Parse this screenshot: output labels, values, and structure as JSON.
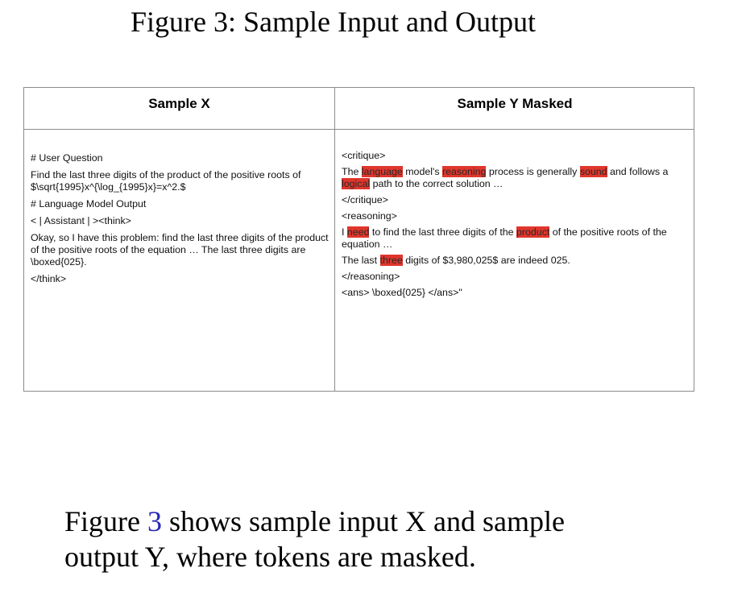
{
  "figure_title": "Figure 3: Sample Input and Output",
  "table": {
    "header_left": "Sample X",
    "header_right": "Sample Y Masked",
    "sample_x": {
      "heading_question": "# User Question",
      "question_line1": "Find the last three digits of the product of the positive roots of",
      "question_line2": "$\\sqrt{1995}x^{\\log_{1995}x}=x^2.$",
      "heading_output": "# Language Model Output",
      "assistant_tag": "< | Assistant | ><think>",
      "output_text": "Okay, so I have this problem: find the last three digits of the product of the positive roots of the equation … The last three digits are \\boxed{025}.",
      "think_close": "</think>"
    },
    "sample_y": {
      "critique_open": "<critique>",
      "critique_line": [
        {
          "text": "The ",
          "masked": false
        },
        {
          "text": "language",
          "masked": true
        },
        {
          "text": " model's ",
          "masked": false
        },
        {
          "text": "reasoning",
          "masked": true
        },
        {
          "text": " process is generally ",
          "masked": false
        },
        {
          "text": "sound",
          "masked": true
        },
        {
          "text": " and follows a ",
          "masked": false
        },
        {
          "text": "logical",
          "masked": true
        },
        {
          "text": " path to the correct solution …",
          "masked": false
        }
      ],
      "critique_close": "</critique>",
      "reasoning_open": "<reasoning>",
      "reasoning_line1": [
        {
          "text": "I ",
          "masked": false
        },
        {
          "text": "need",
          "masked": true
        },
        {
          "text": " to find the last three digits of the ",
          "masked": false
        },
        {
          "text": "product",
          "masked": true
        },
        {
          "text": " of the positive roots of the equation …",
          "masked": false
        }
      ],
      "reasoning_line2": [
        {
          "text": "The last ",
          "masked": false
        },
        {
          "text": "three",
          "masked": true
        },
        {
          "text": " digits of $3,980,025$ are indeed 025.",
          "masked": false
        }
      ],
      "reasoning_close": "</reasoning>",
      "answer": "<ans> \\boxed{025} </ans>\""
    }
  },
  "caption": {
    "prefix": "Figure ",
    "ref": "3",
    "suffix": " shows sample input X and sample output Y, where tokens are masked."
  },
  "colors": {
    "mask_highlight": "#e0362c",
    "ref_link": "#2727b8"
  }
}
